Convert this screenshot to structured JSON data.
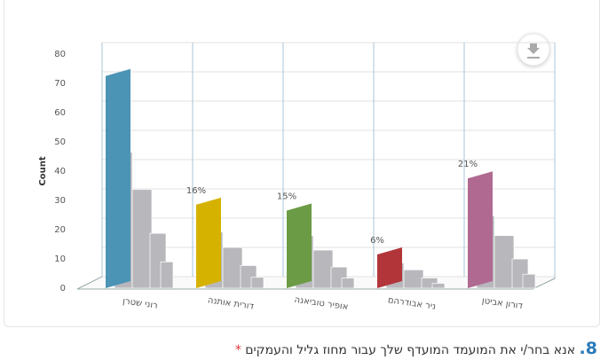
{
  "chart_data": {
    "type": "bar",
    "y_axis_label": "Count",
    "categories": [
      "רוני שטרן",
      "דורית אותנה",
      "אופיר טוביאנה",
      "ניר אבודרהם",
      "דורון אביטן"
    ],
    "values": [
      71,
      27,
      25,
      10,
      36
    ],
    "value_labels": [
      null,
      "16%",
      "15%",
      "6%",
      "21%"
    ],
    "colors": [
      "#4b94b6",
      "#d6b200",
      "#6c9b45",
      "#b2353a",
      "#b06a92"
    ],
    "ylim": [
      0,
      80
    ],
    "yticks": [
      0,
      10,
      20,
      30,
      40,
      50,
      60,
      70,
      80
    ],
    "grid": true
  },
  "question": {
    "number": "8.",
    "text": "אנא בחר/י את המועמד המועדף שלך עבור מחוז גליל והעמקים",
    "required": "*"
  }
}
